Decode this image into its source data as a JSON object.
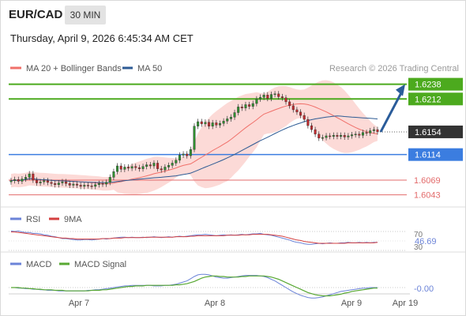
{
  "header": {
    "symbol": "EUR/CAD",
    "interval": "30 MIN",
    "datetime": "Thursday, April 9, 2026 6:45:34 AM CET"
  },
  "colors": {
    "ma20": "#f0706a",
    "band_fill": "#fbd3d0",
    "ma50": "#2d5b94",
    "resistance": "#4caa1e",
    "pivot_line": "#3b7de0",
    "support": "#e36b6b",
    "arrow": "#2a5c9a",
    "candle_up": "#2f8f2f",
    "candle_down": "#c0282c",
    "rsi": "#6b83d8",
    "rsi_ma": "#d43f3f",
    "macd": "#6b83d8",
    "macd_signal": "#58a833"
  },
  "legend": {
    "ma20_label": "MA 20 + Bollinger Bands",
    "ma50_label": "MA 50",
    "credit": "Research © 2026 Trading Central",
    "rsi_label": "RSI",
    "rsi_ma_label": "9MA",
    "macd_label": "MACD",
    "macd_signal_label": "MACD Signal"
  },
  "chart_data": [
    {
      "type": "candlestick",
      "title": "EUR/CAD",
      "ylim": [
        1.603,
        1.625
      ],
      "levels": [
        {
          "value": 1.6238,
          "label": "1.6238",
          "kind": "resistance"
        },
        {
          "value": 1.6212,
          "label": "1.6212",
          "kind": "resistance"
        },
        {
          "value": 1.6154,
          "label": "1.6154",
          "kind": "last"
        },
        {
          "value": 1.6114,
          "label": "1.6114",
          "kind": "pivot"
        },
        {
          "value": 1.6069,
          "label": "1.6069",
          "kind": "support"
        },
        {
          "value": 1.6043,
          "label": "1.6043",
          "kind": "support"
        }
      ],
      "x_ticks": [
        "Apr 7",
        "Apr 8",
        "Apr 9",
        "Apr 19"
      ],
      "close": [
        1.6068,
        1.607,
        1.6067,
        1.6071,
        1.6074,
        1.608,
        1.6069,
        1.6064,
        1.6066,
        1.6068,
        1.6065,
        1.6063,
        1.6061,
        1.6064,
        1.6066,
        1.6063,
        1.606,
        1.6062,
        1.606,
        1.6058,
        1.606,
        1.6059,
        1.6058,
        1.6061,
        1.6063,
        1.6062,
        1.6065,
        1.6074,
        1.6084,
        1.6094,
        1.6088,
        1.6092,
        1.609,
        1.6093,
        1.6091,
        1.6089,
        1.6093,
        1.6096,
        1.6094,
        1.6099,
        1.6089,
        1.6087,
        1.6092,
        1.6095,
        1.6099,
        1.6104,
        1.6113,
        1.6115,
        1.6112,
        1.6123,
        1.6164,
        1.6172,
        1.6168,
        1.6171,
        1.6164,
        1.617,
        1.6166,
        1.6169,
        1.6173,
        1.6177,
        1.618,
        1.6188,
        1.6198,
        1.6196,
        1.6202,
        1.6199,
        1.6204,
        1.6212,
        1.6215,
        1.6219,
        1.6213,
        1.622,
        1.6221,
        1.6216,
        1.6214,
        1.6207,
        1.62,
        1.6193,
        1.6189,
        1.6183,
        1.6176,
        1.6165,
        1.6158,
        1.615,
        1.6143,
        1.6144,
        1.6147,
        1.6146,
        1.6148,
        1.6146,
        1.6148,
        1.6145,
        1.6147,
        1.6149,
        1.615,
        1.6148,
        1.6153,
        1.6152,
        1.6156,
        1.6158,
        1.6154
      ]
    },
    {
      "type": "line",
      "title": "RSI",
      "ylim": [
        30,
        80
      ],
      "y_ticks": [
        70,
        30
      ],
      "last_value": "46.69",
      "series": [
        {
          "name": "RSI",
          "values": [
            71,
            70,
            71,
            69,
            68,
            68,
            66,
            66,
            65,
            63,
            62,
            60,
            59,
            57,
            55,
            55,
            54,
            53,
            52,
            52,
            53,
            53,
            52,
            53,
            54,
            55,
            54,
            55,
            56,
            57,
            58,
            58,
            57,
            58,
            57,
            57,
            58,
            57,
            58,
            59,
            58,
            57,
            58,
            59,
            58,
            59,
            60,
            59,
            60,
            61,
            62,
            63,
            63,
            64,
            63,
            62,
            61,
            62,
            63,
            62,
            63,
            62,
            63,
            64,
            63,
            64,
            65,
            65,
            66,
            64,
            63,
            62,
            60,
            58,
            56,
            54,
            52,
            49,
            47,
            46,
            44,
            43,
            43,
            44,
            45,
            44,
            45,
            46,
            45,
            45,
            46,
            46,
            47,
            46,
            46,
            47,
            46,
            47,
            46,
            47,
            47
          ]
        },
        {
          "name": "9MA",
          "values": [
            69,
            69,
            68,
            67,
            66,
            65,
            64,
            63,
            62,
            61,
            60,
            59,
            58,
            57,
            56,
            56,
            55,
            55,
            54,
            54,
            54,
            54,
            54,
            54,
            54,
            55,
            55,
            55,
            56,
            56,
            56,
            57,
            57,
            57,
            57,
            57,
            57,
            58,
            58,
            58,
            58,
            58,
            58,
            58,
            58,
            59,
            59,
            59,
            59,
            60,
            60,
            61,
            61,
            61,
            61,
            61,
            61,
            61,
            61,
            62,
            62,
            62,
            62,
            63,
            63,
            63,
            64,
            64,
            64,
            64,
            64,
            63,
            62,
            61,
            60,
            58,
            56,
            54,
            52,
            51,
            49,
            48,
            47,
            46,
            45,
            45,
            45,
            45,
            45,
            45,
            45,
            45,
            46,
            46,
            46,
            46,
            46,
            46,
            46,
            46,
            47
          ]
        }
      ]
    },
    {
      "type": "line",
      "title": "MACD",
      "y_ticks": [
        0
      ],
      "last_value": "-0.00",
      "series": [
        {
          "name": "MACD",
          "values": [
            0.0,
            0.0,
            -0.1,
            -0.1,
            -0.2,
            -0.2,
            -0.3,
            -0.3,
            -0.4,
            -0.4,
            -0.5,
            -0.5,
            -0.5,
            -0.6,
            -0.6,
            -0.6,
            -0.6,
            -0.6,
            -0.6,
            -0.6,
            -0.6,
            -0.5,
            -0.5,
            -0.4,
            -0.4,
            -0.3,
            -0.2,
            -0.1,
            0.0,
            0.1,
            0.2,
            0.3,
            0.3,
            0.4,
            0.4,
            0.4,
            0.4,
            0.4,
            0.4,
            0.3,
            0.3,
            0.3,
            0.4,
            0.4,
            0.5,
            0.6,
            0.8,
            1.0,
            1.2,
            1.6,
            2.0,
            2.3,
            2.4,
            2.4,
            2.3,
            2.1,
            1.9,
            1.8,
            1.7,
            1.7,
            1.8,
            1.9,
            2.0,
            2.1,
            2.2,
            2.2,
            2.2,
            2.2,
            2.1,
            2.0,
            1.8,
            1.5,
            1.2,
            0.8,
            0.4,
            0.0,
            -0.4,
            -0.8,
            -1.1,
            -1.4,
            -1.6,
            -1.8,
            -1.9,
            -1.9,
            -1.8,
            -1.7,
            -1.5,
            -1.3,
            -1.1,
            -0.9,
            -0.7,
            -0.6,
            -0.5,
            -0.4,
            -0.3,
            -0.2,
            -0.1,
            -0.1,
            0.0,
            0.0,
            0.0
          ]
        },
        {
          "name": "MACD Signal",
          "values": [
            0.0,
            0.0,
            0.0,
            -0.1,
            -0.1,
            -0.2,
            -0.2,
            -0.3,
            -0.3,
            -0.4,
            -0.4,
            -0.4,
            -0.5,
            -0.5,
            -0.5,
            -0.6,
            -0.6,
            -0.6,
            -0.6,
            -0.6,
            -0.6,
            -0.6,
            -0.5,
            -0.5,
            -0.5,
            -0.4,
            -0.4,
            -0.3,
            -0.2,
            -0.1,
            0.0,
            0.1,
            0.2,
            0.2,
            0.3,
            0.3,
            0.3,
            0.4,
            0.4,
            0.4,
            0.4,
            0.4,
            0.4,
            0.4,
            0.4,
            0.5,
            0.5,
            0.6,
            0.7,
            0.9,
            1.1,
            1.4,
            1.7,
            1.9,
            2.0,
            2.1,
            2.1,
            2.0,
            2.0,
            1.9,
            1.9,
            1.9,
            1.9,
            2.0,
            2.0,
            2.1,
            2.1,
            2.1,
            2.1,
            2.1,
            2.0,
            1.9,
            1.7,
            1.5,
            1.2,
            0.9,
            0.6,
            0.3,
            0.0,
            -0.3,
            -0.6,
            -0.9,
            -1.1,
            -1.3,
            -1.4,
            -1.5,
            -1.5,
            -1.5,
            -1.4,
            -1.3,
            -1.2,
            -1.0,
            -0.9,
            -0.7,
            -0.6,
            -0.5,
            -0.4,
            -0.3,
            -0.2,
            -0.1,
            -0.1
          ]
        }
      ]
    }
  ]
}
